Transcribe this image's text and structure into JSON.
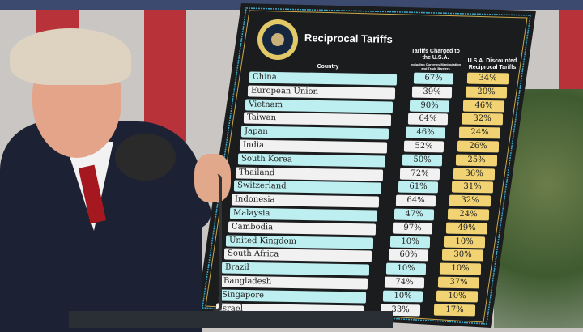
{
  "board": {
    "title": "Reciprocal Tariffs",
    "col_country": "Country",
    "col_charged": "Tariffs Charged to the U.S.A.",
    "col_charged_note": "Including Currency Manipulation and Trade Barriers",
    "col_discounted": "U.S.A. Discounted Reciprocal Tariffs",
    "rows": [
      {
        "country": "China",
        "charged": "67%",
        "discounted": "34%"
      },
      {
        "country": "European Union",
        "charged": "39%",
        "discounted": "20%"
      },
      {
        "country": "Vietnam",
        "charged": "90%",
        "discounted": "46%"
      },
      {
        "country": "Taiwan",
        "charged": "64%",
        "discounted": "32%"
      },
      {
        "country": "Japan",
        "charged": "46%",
        "discounted": "24%"
      },
      {
        "country": "India",
        "charged": "52%",
        "discounted": "26%"
      },
      {
        "country": "South Korea",
        "charged": "50%",
        "discounted": "25%"
      },
      {
        "country": "Thailand",
        "charged": "72%",
        "discounted": "36%"
      },
      {
        "country": "Switzerland",
        "charged": "61%",
        "discounted": "31%"
      },
      {
        "country": "Indonesia",
        "charged": "64%",
        "discounted": "32%"
      },
      {
        "country": "Malaysia",
        "charged": "47%",
        "discounted": "24%"
      },
      {
        "country": "Cambodia",
        "charged": "97%",
        "discounted": "49%"
      },
      {
        "country": "United Kingdom",
        "charged": "10%",
        "discounted": "10%"
      },
      {
        "country": "South Africa",
        "charged": "60%",
        "discounted": "30%"
      },
      {
        "country": "Brazil",
        "charged": "10%",
        "discounted": "10%"
      },
      {
        "country": "Bangladesh",
        "charged": "74%",
        "discounted": "37%"
      },
      {
        "country": "Singapore",
        "charged": "10%",
        "discounted": "10%"
      },
      {
        "country": "Israel",
        "charged": "33%",
        "discounted": "17%"
      }
    ]
  },
  "colors": {
    "cyan": "#bdeef0",
    "white": "#f1f1f1",
    "gold": "#f1d373",
    "board": "#1b1c1e",
    "flag_red": "#b8323a"
  }
}
